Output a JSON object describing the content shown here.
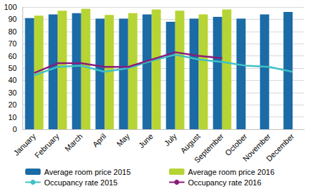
{
  "chart_data": {
    "type": "bar",
    "categories": [
      "January",
      "February",
      "March",
      "April",
      "May",
      "June",
      "July",
      "August",
      "September",
      "October",
      "November",
      "December"
    ],
    "series": [
      {
        "name": "Average room price 2015",
        "type": "bar",
        "color": "#1b6ba6",
        "values": [
          91,
          94,
          95,
          90.5,
          90.5,
          94,
          88,
          90.5,
          92,
          90.5,
          94,
          96
        ]
      },
      {
        "name": "Average room price 2016",
        "type": "bar",
        "color": "#b6d433",
        "values": [
          93,
          97,
          98.5,
          93.5,
          95,
          98,
          97,
          94,
          98,
          null,
          null,
          null
        ]
      },
      {
        "name": "Occupancy rate 2015",
        "type": "line",
        "color": "#3fc1c6",
        "values": [
          44,
          51,
          52,
          47,
          50,
          56,
          61,
          57,
          55,
          52,
          51,
          47
        ]
      },
      {
        "name": "Occupancy rate 2016",
        "type": "line",
        "color": "#8a1b7c",
        "values": [
          46,
          54,
          54,
          51,
          51,
          57,
          63,
          60,
          58,
          null,
          null,
          null
        ]
      }
    ],
    "ylim": [
      0,
      100
    ],
    "yticks": [
      0,
      10,
      20,
      30,
      40,
      50,
      60,
      70,
      80,
      90,
      100
    ],
    "grid": true,
    "legend": "bottom"
  }
}
